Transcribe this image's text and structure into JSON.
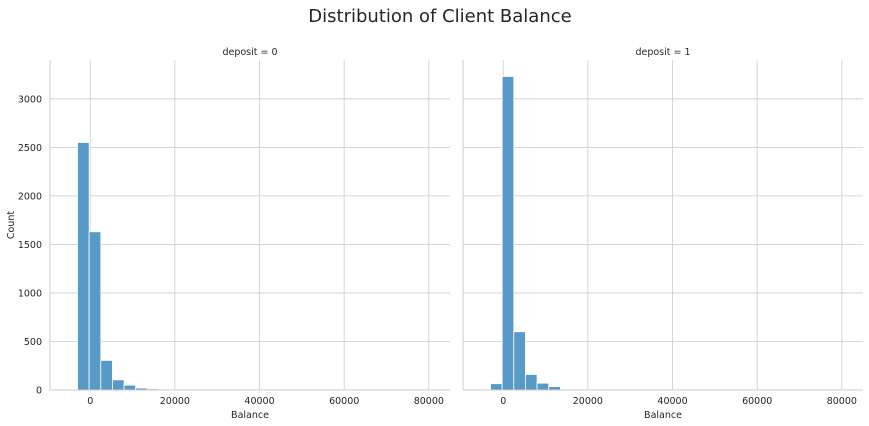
{
  "chart_data": {
    "type": "bar",
    "title": "Distribution of Client Balance",
    "xlabel": "Balance",
    "ylabel": "Count",
    "xlim": [
      -9500,
      85000
    ],
    "ylim": [
      0,
      3400
    ],
    "xticks": [
      0,
      20000,
      40000,
      60000,
      80000
    ],
    "yticks": [
      0,
      500,
      1000,
      1500,
      2000,
      2500,
      3000
    ],
    "grid": true,
    "bin_width": 2750,
    "facets": [
      {
        "title": "deposit = 0",
        "bins": [
          {
            "x0": -3000,
            "x1": -250,
            "count": 2550
          },
          {
            "x0": -250,
            "x1": 2500,
            "count": 1630
          },
          {
            "x0": 2500,
            "x1": 5250,
            "count": 305
          },
          {
            "x0": 5250,
            "x1": 8000,
            "count": 105
          },
          {
            "x0": 8000,
            "x1": 10750,
            "count": 50
          },
          {
            "x0": 10750,
            "x1": 13500,
            "count": 20
          },
          {
            "x0": 13500,
            "x1": 16250,
            "count": 12
          },
          {
            "x0": 16250,
            "x1": 19000,
            "count": 5
          },
          {
            "x0": 19000,
            "x1": 21750,
            "count": 3
          },
          {
            "x0": 21750,
            "x1": 24500,
            "count": 2
          },
          {
            "x0": 24500,
            "x1": 27250,
            "count": 1
          }
        ]
      },
      {
        "title": "deposit = 1",
        "bins": [
          {
            "x0": -3000,
            "x1": -250,
            "count": 65
          },
          {
            "x0": -250,
            "x1": 2500,
            "count": 3230
          },
          {
            "x0": 2500,
            "x1": 5250,
            "count": 600
          },
          {
            "x0": 5250,
            "x1": 8000,
            "count": 160
          },
          {
            "x0": 8000,
            "x1": 10750,
            "count": 70
          },
          {
            "x0": 10750,
            "x1": 13500,
            "count": 35
          },
          {
            "x0": 13500,
            "x1": 16250,
            "count": 5
          },
          {
            "x0": 16250,
            "x1": 19000,
            "count": 3
          },
          {
            "x0": 19000,
            "x1": 21750,
            "count": 2
          },
          {
            "x0": 21750,
            "x1": 24500,
            "count": 1
          }
        ]
      }
    ],
    "colors": {
      "bar_fill": "#5799c7",
      "bar_edge": "#ffffff",
      "grid": "#cccccc",
      "axis": "#cccccc",
      "text": "#262626"
    }
  }
}
